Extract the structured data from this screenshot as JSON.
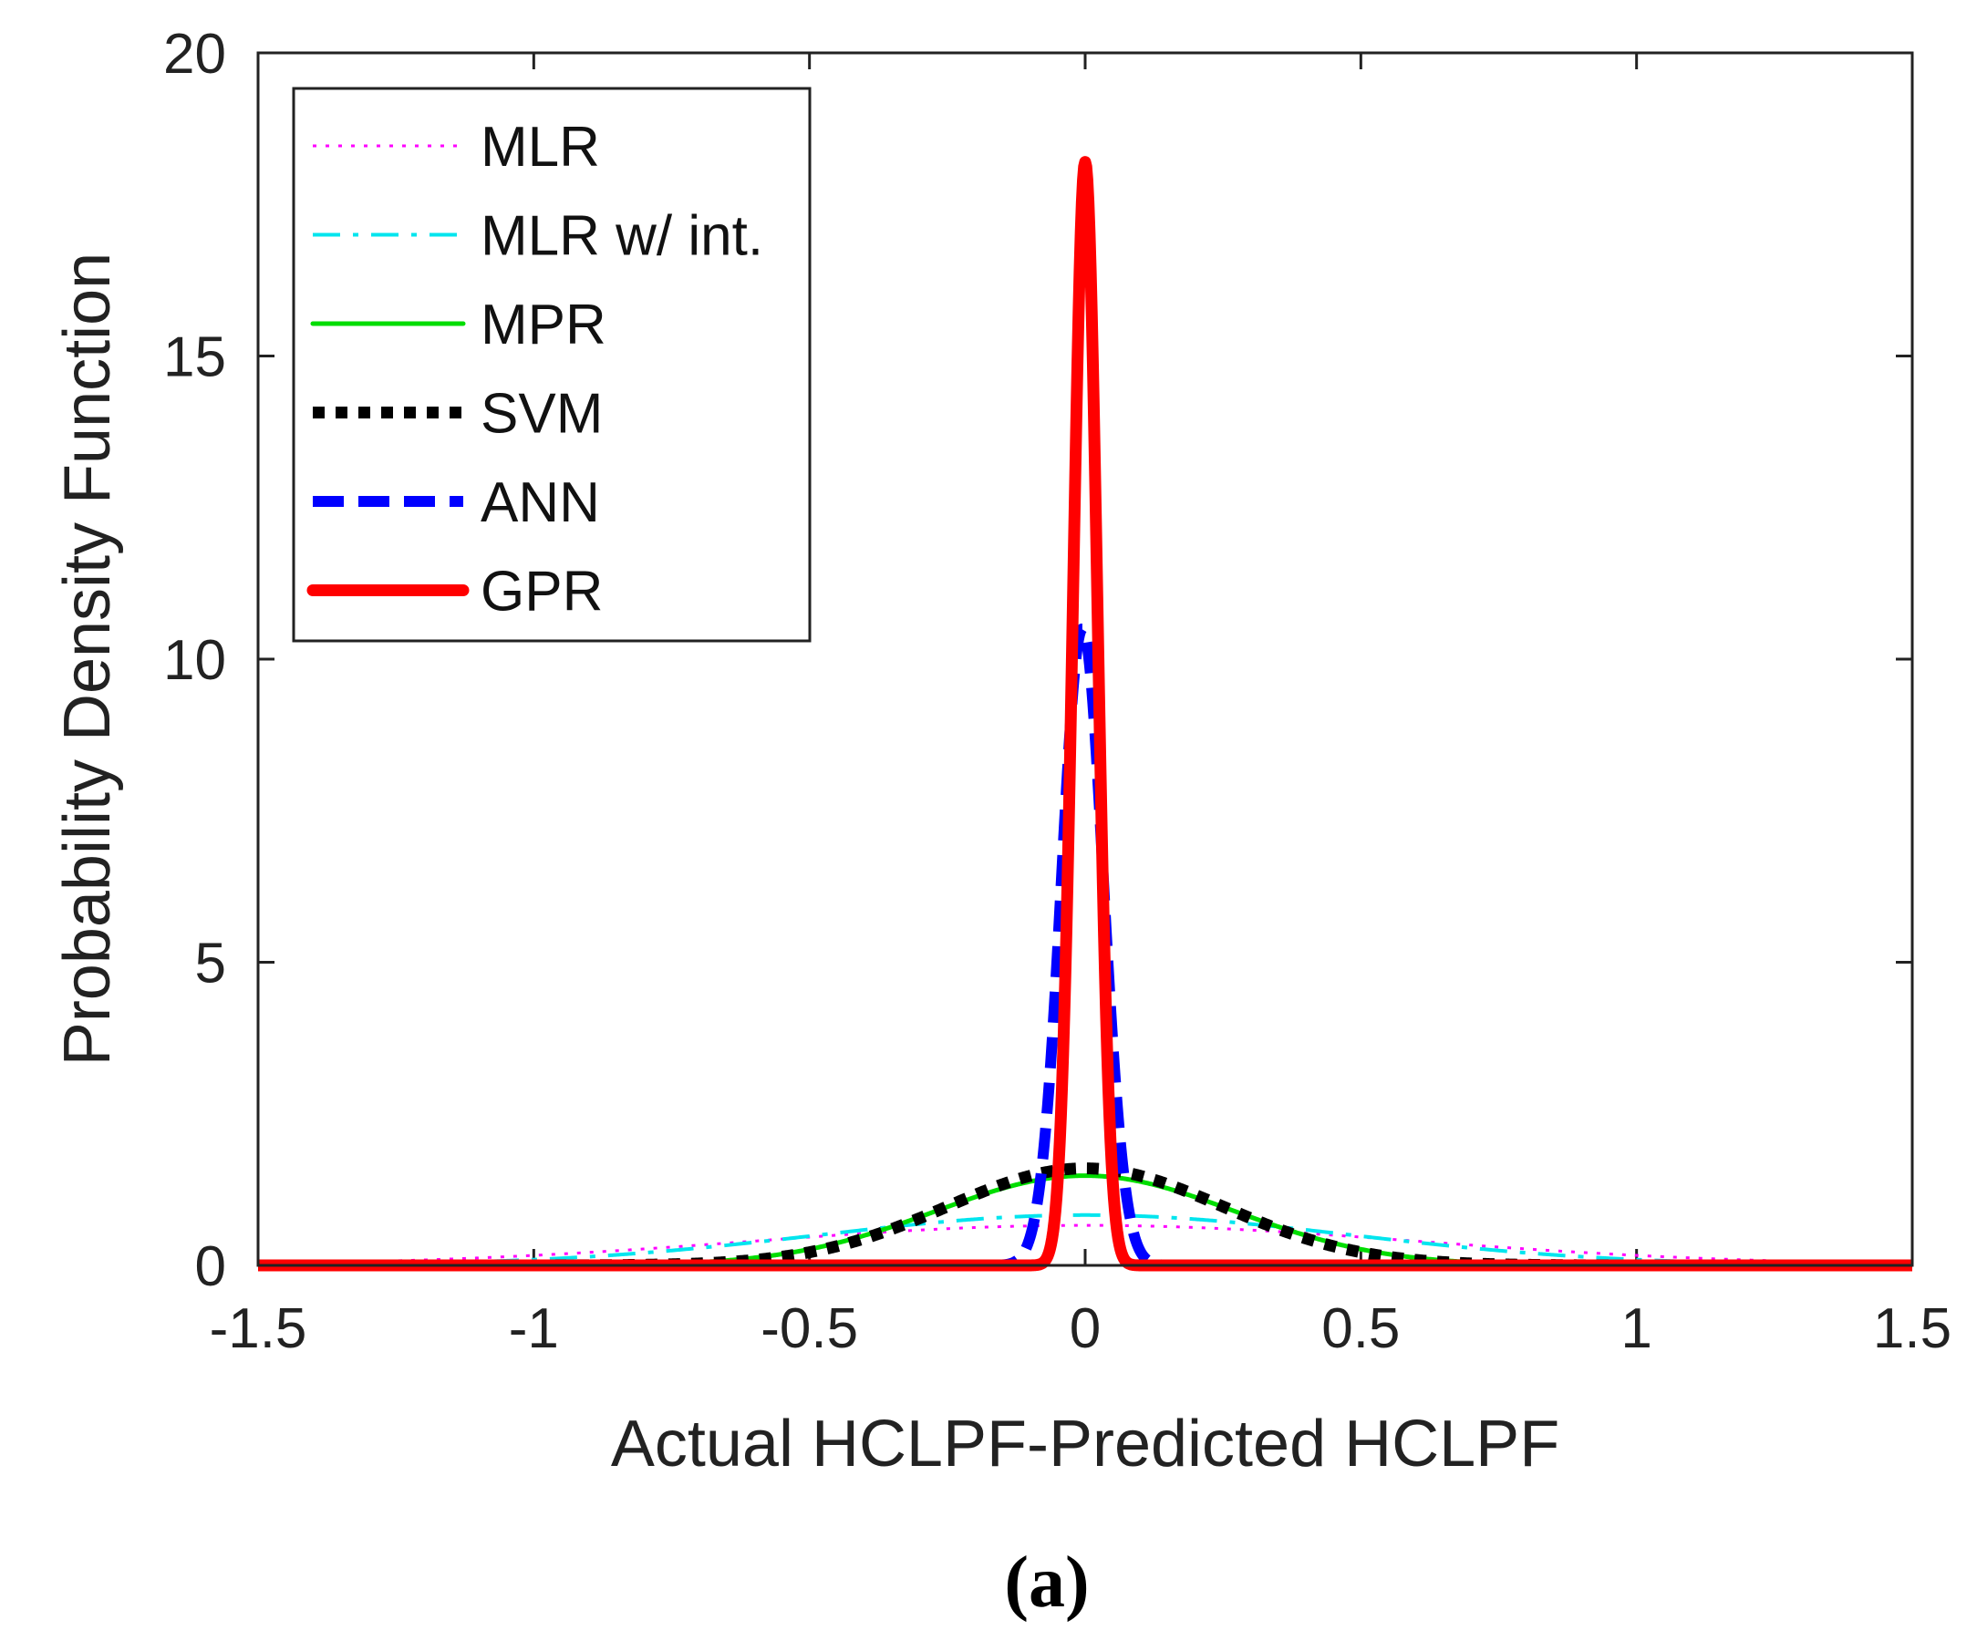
{
  "chart_data": {
    "type": "line",
    "title": "",
    "xlabel": "Actual HCLPF-Predicted HCLPF",
    "ylabel": "Probability Density Function",
    "caption": "(a)",
    "xlim": [
      -1.5,
      1.5
    ],
    "ylim": [
      0,
      20
    ],
    "x_ticks": [
      -1.5,
      -1,
      -0.5,
      0,
      0.5,
      1,
      1.5
    ],
    "x_tick_labels": [
      "-1.5",
      "-1",
      "-0.5",
      "0",
      "0.5",
      "1",
      "1.5"
    ],
    "y_ticks": [
      0,
      5,
      10,
      15,
      20
    ],
    "y_tick_labels": [
      "0",
      "5",
      "10",
      "15",
      "20"
    ],
    "grid": false,
    "legend_position": "top-left",
    "distribution": "normal",
    "series": [
      {
        "name": "MLR",
        "mean": 0.0,
        "std": 0.6,
        "peak": 0.66,
        "color": "#ff00ff",
        "style": "dotted"
      },
      {
        "name": "MLR w/ int.",
        "mean": 0.0,
        "std": 0.48,
        "peak": 0.83,
        "color": "#00e5ee",
        "style": "dash-dot"
      },
      {
        "name": "MPR",
        "mean": 0.0,
        "std": 0.27,
        "peak": 1.48,
        "color": "#00dd00",
        "style": "solid"
      },
      {
        "name": "SVM",
        "mean": 0.0,
        "std": 0.25,
        "peak": 1.6,
        "color": "#000000",
        "style": "dotted-thick"
      },
      {
        "name": "ANN",
        "mean": -0.005,
        "std": 0.038,
        "peak": 10.5,
        "color": "#0000ff",
        "style": "dashed-thick"
      },
      {
        "name": "GPR",
        "mean": 0.0,
        "std": 0.022,
        "peak": 18.2,
        "color": "#ff0000",
        "style": "solid-thick"
      }
    ]
  }
}
